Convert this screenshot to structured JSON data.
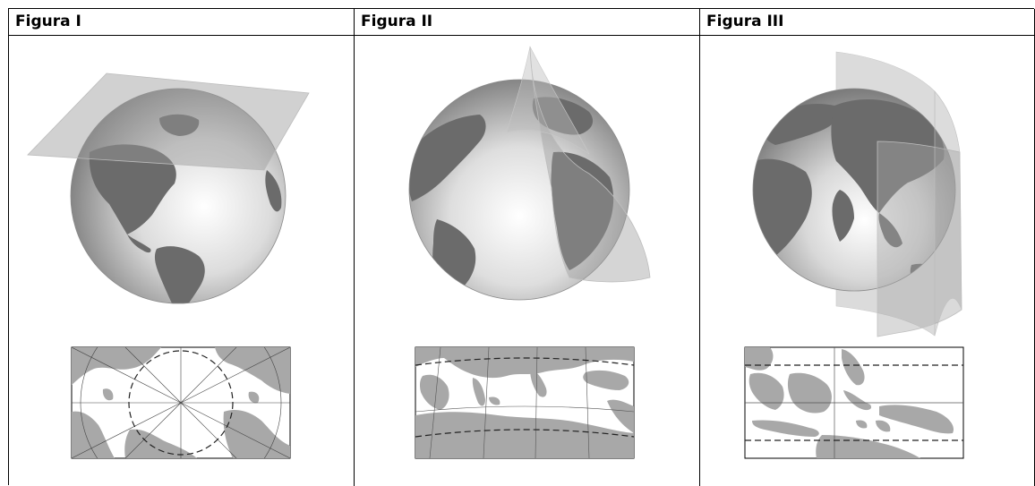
{
  "figures": [
    {
      "title": "Figura I",
      "projection": "plane"
    },
    {
      "title": "Figura II",
      "projection": "cone"
    },
    {
      "title": "Figura III",
      "projection": "cylinder"
    }
  ],
  "colors": {
    "land": "#7a7a7a",
    "map_land": "#a8a8a8",
    "sea": "#ffffff",
    "border": "#000000"
  }
}
